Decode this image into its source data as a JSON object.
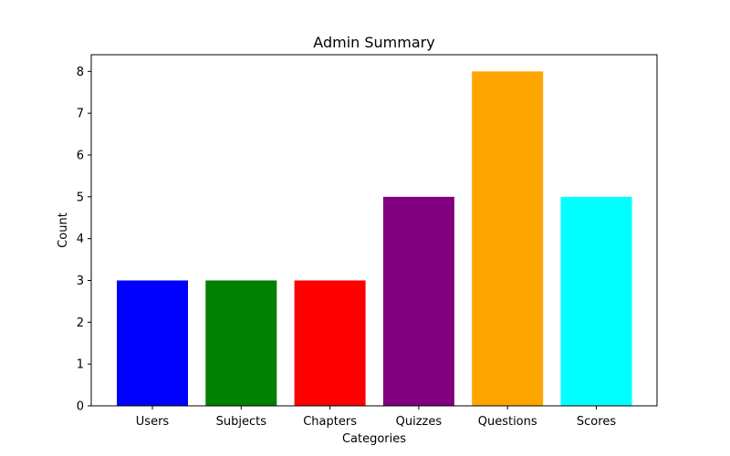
{
  "chart_data": {
    "type": "bar",
    "title": "Admin Summary",
    "xlabel": "Categories",
    "ylabel": "Count",
    "categories": [
      "Users",
      "Subjects",
      "Chapters",
      "Quizzes",
      "Questions",
      "Scores"
    ],
    "values": [
      3,
      3,
      3,
      5,
      8,
      5
    ],
    "colors": [
      "#0000ff",
      "#008000",
      "#ff0000",
      "#800080",
      "#ffa500",
      "#00ffff"
    ],
    "ylim": [
      0,
      8.4
    ],
    "yticks": [
      "0",
      "1",
      "2",
      "3",
      "4",
      "5",
      "6",
      "7",
      "8"
    ],
    "grid": false,
    "legend": "none"
  }
}
